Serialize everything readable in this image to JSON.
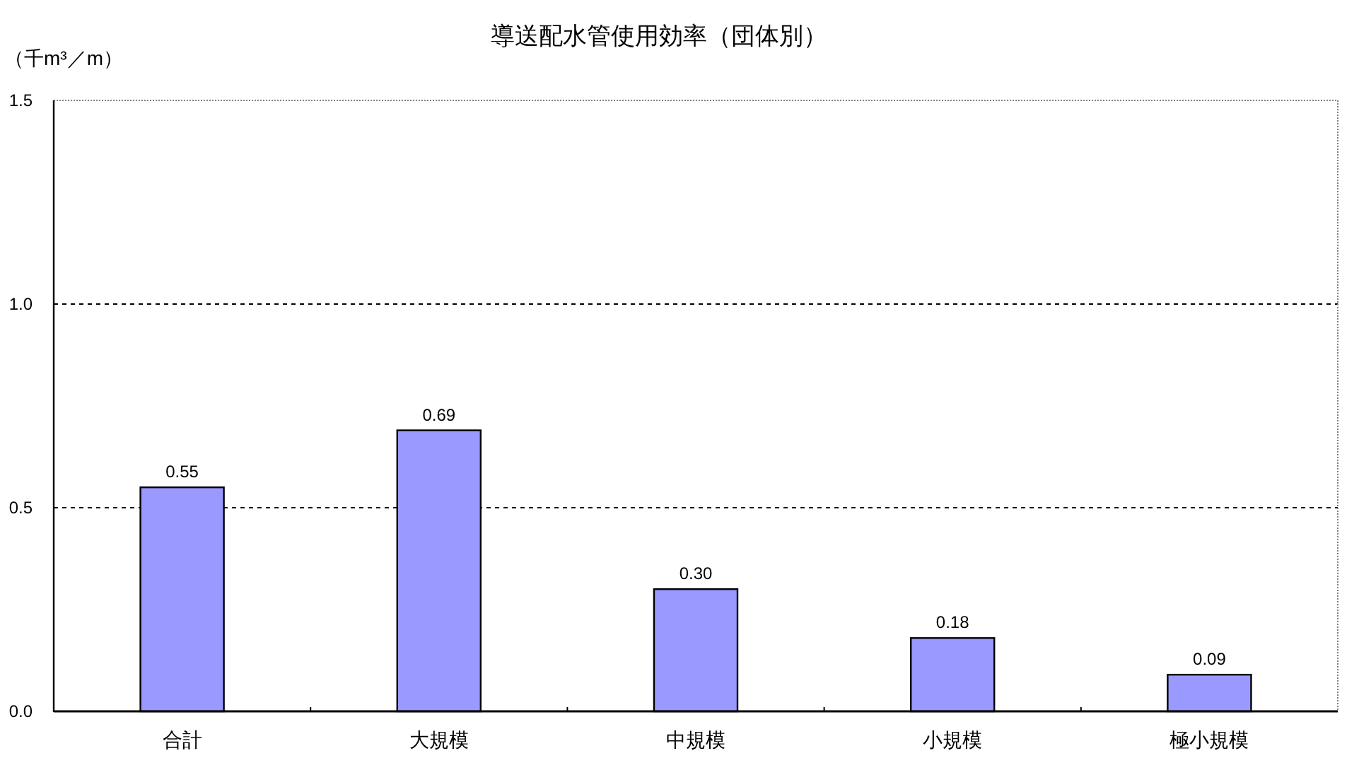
{
  "chart_data": {
    "type": "bar",
    "title": "導送配水管使用効率（団体別）",
    "ylabel": "（千m³／m）",
    "categories": [
      "合計",
      "大規模",
      "中規模",
      "小規模",
      "極小規模"
    ],
    "values": [
      0.55,
      0.69,
      0.3,
      0.18,
      0.09
    ],
    "value_labels": [
      "0.55",
      "0.69",
      "0.30",
      "0.18",
      "0.09"
    ],
    "color": "#9999ff",
    "ylim": [
      0,
      1.5
    ],
    "yticks": [
      {
        "value": 0,
        "label": "0.0"
      },
      0.5,
      {
        "value": 1,
        "label": "1.0"
      },
      1.5
    ],
    "grid": "y"
  }
}
